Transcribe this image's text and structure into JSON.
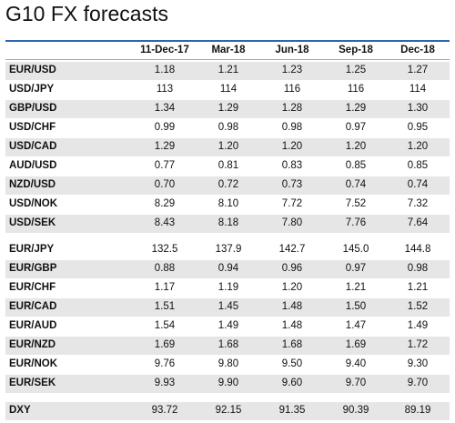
{
  "title": "G10 FX forecasts",
  "table": {
    "columns": [
      "11-Dec-17",
      "Mar-18",
      "Jun-18",
      "Sep-18",
      "Dec-18"
    ],
    "groups": [
      [
        {
          "label": "EUR/USD",
          "values": [
            "1.18",
            "1.21",
            "1.23",
            "1.25",
            "1.27"
          ]
        },
        {
          "label": "USD/JPY",
          "values": [
            "113",
            "114",
            "116",
            "116",
            "114"
          ]
        },
        {
          "label": "GBP/USD",
          "values": [
            "1.34",
            "1.29",
            "1.28",
            "1.29",
            "1.30"
          ]
        },
        {
          "label": "USD/CHF",
          "values": [
            "0.99",
            "0.98",
            "0.98",
            "0.97",
            "0.95"
          ]
        },
        {
          "label": "USD/CAD",
          "values": [
            "1.29",
            "1.20",
            "1.20",
            "1.20",
            "1.20"
          ]
        },
        {
          "label": "AUD/USD",
          "values": [
            "0.77",
            "0.81",
            "0.83",
            "0.85",
            "0.85"
          ]
        },
        {
          "label": "NZD/USD",
          "values": [
            "0.70",
            "0.72",
            "0.73",
            "0.74",
            "0.74"
          ]
        },
        {
          "label": "USD/NOK",
          "values": [
            "8.29",
            "8.10",
            "7.72",
            "7.52",
            "7.32"
          ]
        },
        {
          "label": "USD/SEK",
          "values": [
            "8.43",
            "8.18",
            "7.80",
            "7.76",
            "7.64"
          ]
        }
      ],
      [
        {
          "label": "EUR/JPY",
          "values": [
            "132.5",
            "137.9",
            "142.7",
            "145.0",
            "144.8"
          ]
        },
        {
          "label": "EUR/GBP",
          "values": [
            "0.88",
            "0.94",
            "0.96",
            "0.97",
            "0.98"
          ]
        },
        {
          "label": "EUR/CHF",
          "values": [
            "1.17",
            "1.19",
            "1.20",
            "1.21",
            "1.21"
          ]
        },
        {
          "label": "EUR/CAD",
          "values": [
            "1.51",
            "1.45",
            "1.48",
            "1.50",
            "1.52"
          ]
        },
        {
          "label": "EUR/AUD",
          "values": [
            "1.54",
            "1.49",
            "1.48",
            "1.47",
            "1.49"
          ]
        },
        {
          "label": "EUR/NZD",
          "values": [
            "1.69",
            "1.68",
            "1.68",
            "1.69",
            "1.72"
          ]
        },
        {
          "label": "EUR/NOK",
          "values": [
            "9.76",
            "9.80",
            "9.50",
            "9.40",
            "9.30"
          ]
        },
        {
          "label": "EUR/SEK",
          "values": [
            "9.93",
            "9.90",
            "9.60",
            "9.70",
            "9.70"
          ]
        }
      ],
      [
        {
          "label": "DXY",
          "values": [
            "93.72",
            "92.15",
            "91.35",
            "90.39",
            "89.19"
          ]
        }
      ]
    ]
  }
}
